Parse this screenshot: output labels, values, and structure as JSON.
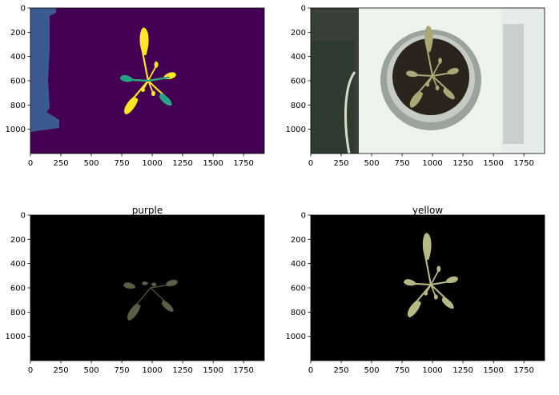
{
  "chart_data": [
    {
      "type": "image",
      "panel": "segmentation-mask",
      "title": "",
      "xticks": [
        0,
        250,
        500,
        750,
        1000,
        1250,
        1500,
        1750
      ],
      "yticks": [
        0,
        200,
        400,
        600,
        800,
        1000
      ],
      "xlim": [
        0,
        1920
      ],
      "ylim": [
        1200,
        0
      ],
      "colors": {
        "background": "#440154",
        "region": "#3b5a8f",
        "plant_teal": "#21a685",
        "plant_yellow": "#fde725"
      }
    },
    {
      "type": "image",
      "panel": "original-photo",
      "title": "",
      "xticks": [
        0,
        250,
        500,
        750,
        1000,
        1250,
        1500,
        1750
      ],
      "yticks": [
        0,
        200,
        400,
        600,
        800,
        1000
      ],
      "xlim": [
        0,
        1920
      ],
      "ylim": [
        1200,
        0
      ]
    },
    {
      "type": "image",
      "panel": "purple-mask",
      "title": "purple",
      "xticks": [
        0,
        250,
        500,
        750,
        1000,
        1250,
        1500,
        1750
      ],
      "yticks": [
        0,
        200,
        400,
        600,
        800,
        1000
      ],
      "xlim": [
        0,
        1920
      ],
      "ylim": [
        1200,
        0
      ]
    },
    {
      "type": "image",
      "panel": "yellow-mask",
      "title": "yellow",
      "xticks": [
        0,
        250,
        500,
        750,
        1000,
        1250,
        1500,
        1750
      ],
      "yticks": [
        0,
        200,
        400,
        600,
        800,
        1000
      ],
      "xlim": [
        0,
        1920
      ],
      "ylim": [
        1200,
        0
      ]
    }
  ]
}
